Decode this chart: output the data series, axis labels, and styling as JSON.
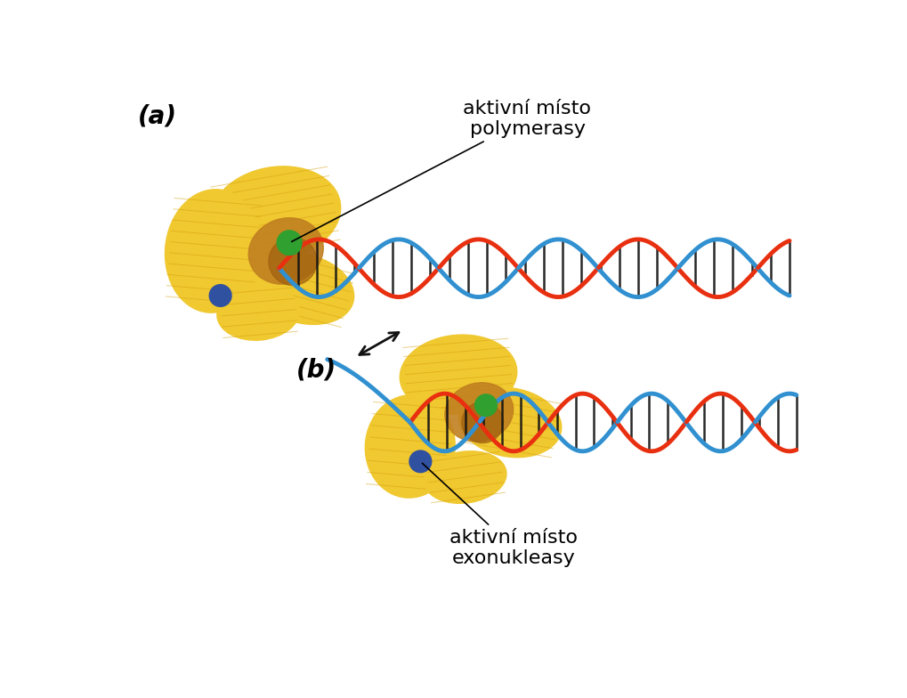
{
  "background_color": "#ffffff",
  "panel_a_label": "(a)",
  "panel_b_label": "(b)",
  "annotation_a_text": "aktivní místo\npolymerasy",
  "annotation_b_text": "aktivní místo\nexonukleasy",
  "font_size_labels": 20,
  "font_size_annotations": 16,
  "protein_yellow": "#f0c830",
  "protein_yellow2": "#e8b820",
  "protein_brown": "#c08020",
  "protein_dark_brown": "#a06010",
  "dna_red": "#e83010",
  "dna_blue": "#3090d0",
  "dna_connector": "#111111",
  "green_ball": "#30a030",
  "blue_ball": "#3050a0",
  "arrow_color": "#111111"
}
